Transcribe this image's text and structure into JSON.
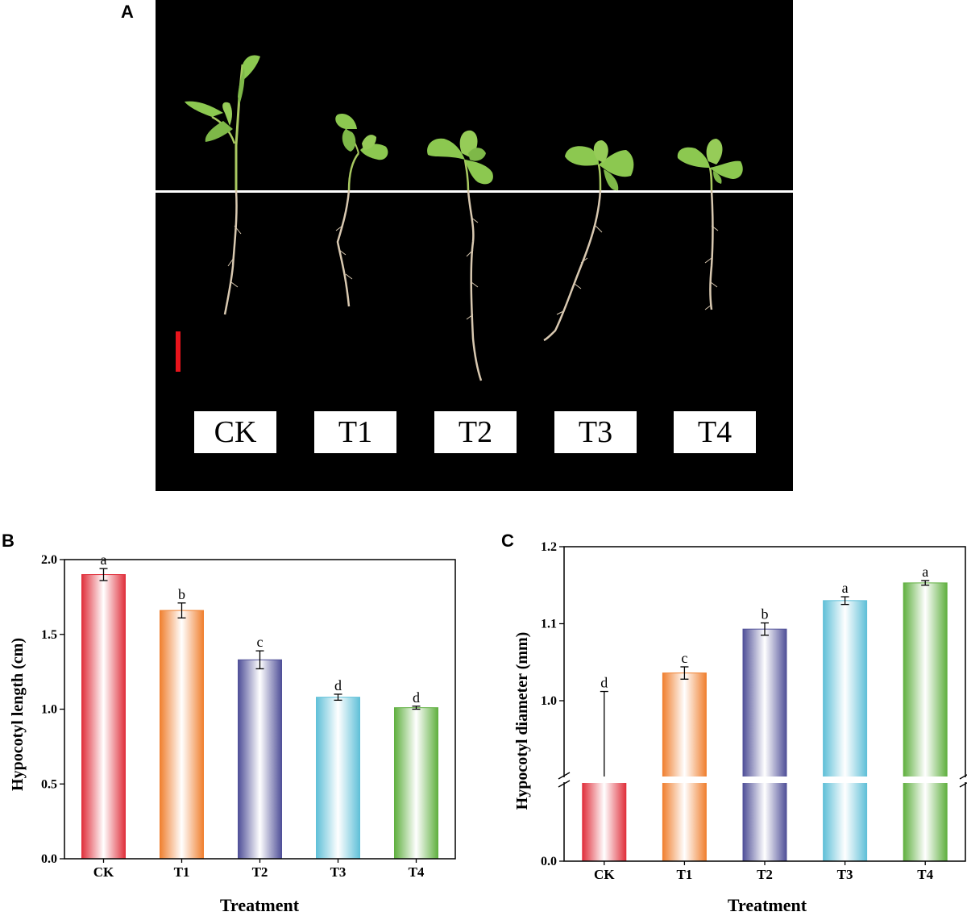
{
  "panels": {
    "a": "A",
    "b": "B",
    "c": "C"
  },
  "photo": {
    "labels": [
      "CK",
      "T1",
      "T2",
      "T3",
      "T4"
    ],
    "colors": {
      "background": "#000000",
      "line": "#ffffff",
      "scale_bar": "#e8141c",
      "leaf": "#8cc850",
      "root": "#d8c8b0"
    }
  },
  "chart_data": [
    {
      "type": "bar",
      "categories": [
        "CK",
        "T1",
        "T2",
        "T3",
        "T4"
      ],
      "values": [
        1.9,
        1.66,
        1.33,
        1.08,
        1.01
      ],
      "errors": [
        0.04,
        0.05,
        0.06,
        0.02,
        0.01
      ],
      "letters": [
        "a",
        "b",
        "c",
        "d",
        "d"
      ],
      "bar_colors": [
        "#e0303c",
        "#f08030",
        "#505098",
        "#60c0d8",
        "#60b040"
      ],
      "xlabel": "Treatment",
      "ylabel": "Hypocotyl length (cm)",
      "ylim": [
        0,
        2.0
      ],
      "yticks": [
        "0.0",
        "0.5",
        "1.0",
        "1.5",
        "2.0"
      ],
      "grid": false,
      "legend": "none"
    },
    {
      "type": "bar",
      "categories": [
        "CK",
        "T1",
        "T2",
        "T3",
        "T4"
      ],
      "values": [
        0.993,
        1.036,
        1.093,
        1.13,
        1.153
      ],
      "errors": [
        0.019,
        0.008,
        0.008,
        0.005,
        0.003
      ],
      "letters": [
        "d",
        "c",
        "b",
        "a",
        "a"
      ],
      "bar_colors": [
        "#e0303c",
        "#f08030",
        "#505098",
        "#60c0d8",
        "#60b040"
      ],
      "xlabel": "Treatment",
      "ylabel": "Hypocotyl diameter (mm)",
      "ylim": [
        0,
        1.2
      ],
      "axis_break": true,
      "yticks": [
        "0.0",
        "1.0",
        "1.1",
        "1.2"
      ],
      "grid": false,
      "legend": "none"
    }
  ]
}
